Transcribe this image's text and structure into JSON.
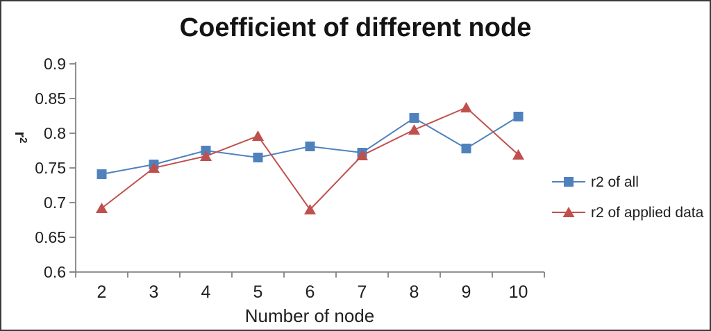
{
  "frame": {
    "background": "#ffffff",
    "border_color": "#3a3a3a"
  },
  "chart_data": {
    "type": "line",
    "title": "Coefficient of different node",
    "xlabel": "Number of node",
    "ylabel": {
      "base": "r",
      "superscript": "2"
    },
    "categories": [
      2,
      3,
      4,
      5,
      6,
      7,
      8,
      9,
      10
    ],
    "series": [
      {
        "name": "r2 of all",
        "marker": "square",
        "color": "#4F81BD",
        "values": [
          0.741,
          0.755,
          0.775,
          0.765,
          0.781,
          0.772,
          0.822,
          0.778,
          0.824
        ]
      },
      {
        "name": "r2 of applied data",
        "marker": "triangle",
        "color": "#C0504D",
        "values": [
          0.692,
          0.75,
          0.767,
          0.796,
          0.69,
          0.768,
          0.805,
          0.837,
          0.769
        ]
      }
    ],
    "ylim": [
      0.6,
      0.9
    ],
    "y_tick_labels": [
      "0.9",
      "0.85",
      "0.8",
      "0.75",
      "0.7",
      "0.65",
      "0.6"
    ],
    "axis_color": "#828282",
    "text_color": "#1f1f1f",
    "grid": "off",
    "legend_position": "right"
  }
}
